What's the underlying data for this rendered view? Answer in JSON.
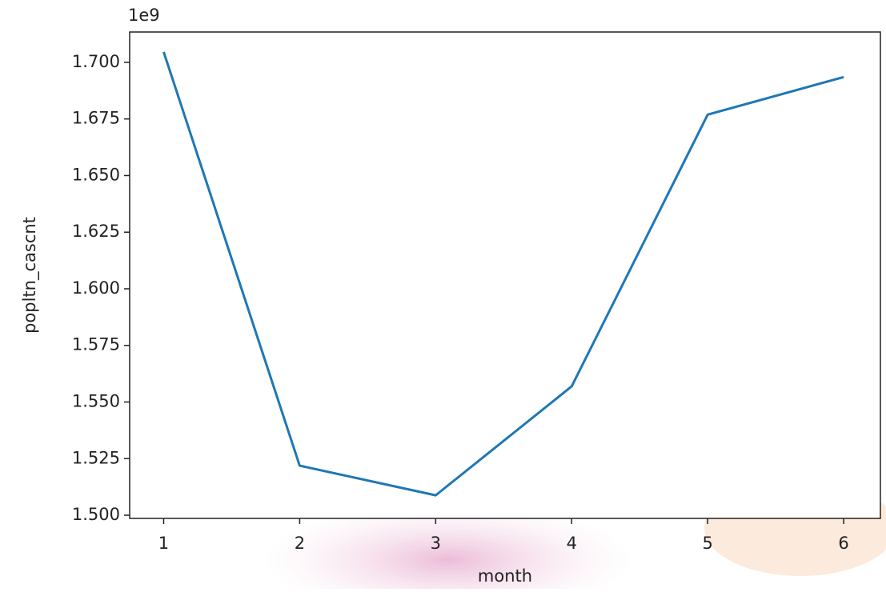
{
  "chart_data": {
    "type": "line",
    "x_label": "month",
    "y_label": "popltn_cascnt",
    "offset_label": "1e9",
    "x": [
      1,
      2,
      3,
      4,
      5,
      6
    ],
    "series": [
      {
        "color": "#1f77b4",
        "values": [
          1.7046,
          1.5219,
          1.5088,
          1.5569,
          1.6769,
          1.6935
        ]
      }
    ],
    "xlim": [
      0.75,
      6.27
    ],
    "xticks": [
      1,
      2,
      3,
      4,
      5,
      6
    ],
    "ylim": [
      1.4986,
      1.7134
    ],
    "yticks": [
      {
        "value": 1.5,
        "label": "1.500"
      },
      {
        "value": 1.525,
        "label": "1.525"
      },
      {
        "value": 1.55,
        "label": "1.550"
      },
      {
        "value": 1.575,
        "label": "1.575"
      },
      {
        "value": 1.6,
        "label": "1.600"
      },
      {
        "value": 1.625,
        "label": "1.625"
      },
      {
        "value": 1.65,
        "label": "1.650"
      },
      {
        "value": 1.675,
        "label": "1.675"
      },
      {
        "value": 1.7,
        "label": "1.700"
      }
    ],
    "grid": false
  }
}
